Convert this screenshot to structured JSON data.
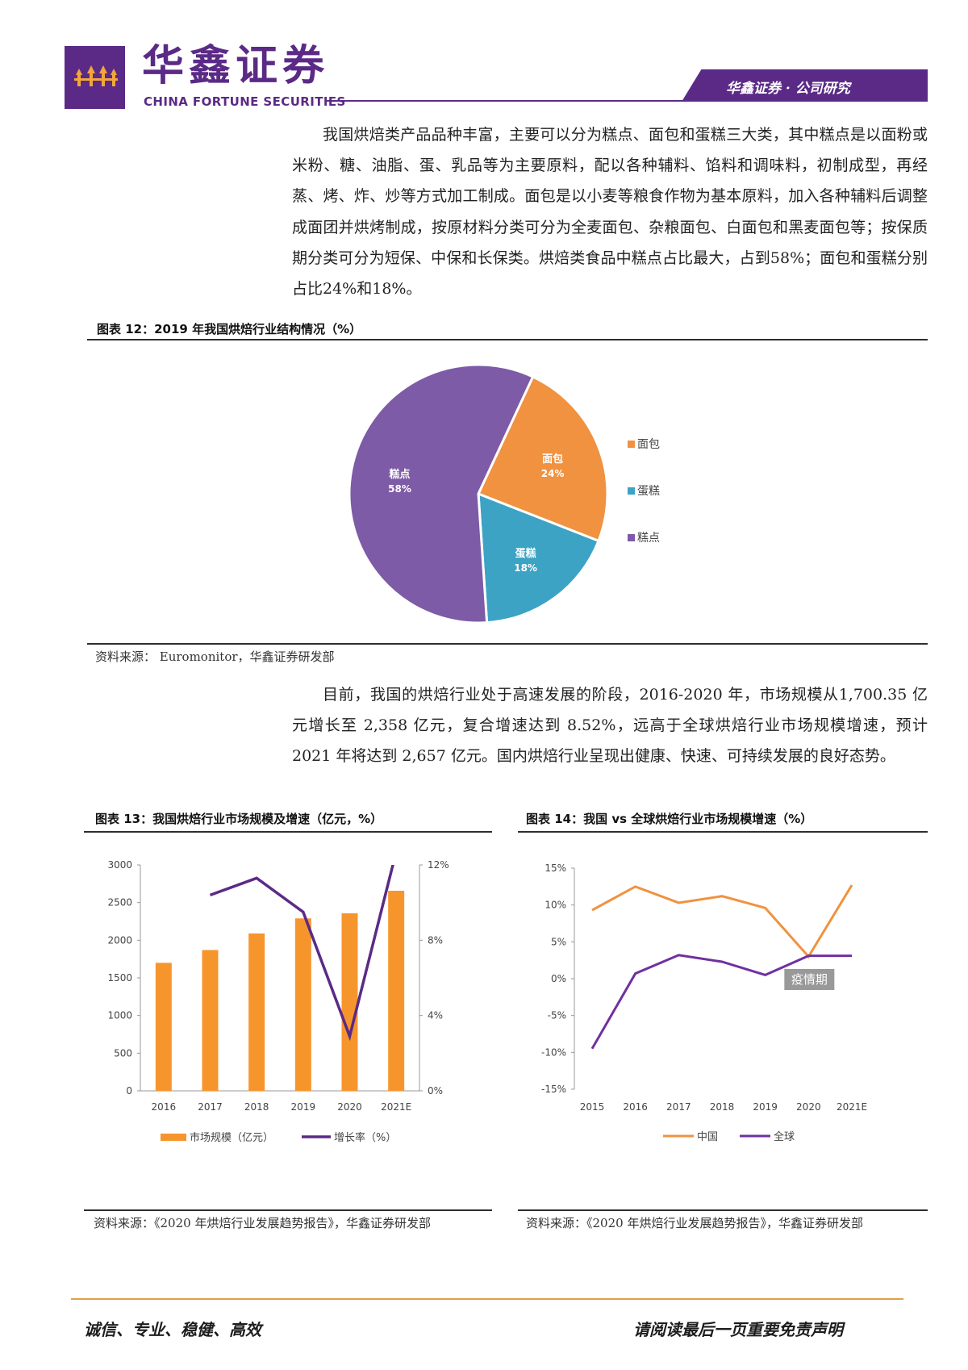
{
  "header": {
    "logo_cn": "华鑫证券",
    "logo_en": "CHINA FORTUNE SECURITIES",
    "tag": "华鑫证券 · 公司研究",
    "logo_icon": "flame-figures-icon",
    "brand_color": "#5b2a86"
  },
  "para1": "我国烘焙类产品品种丰富，主要可以分为糕点、面包和蛋糕三大类，其中糕点是以面粉或米粉、糖、油脂、蛋、乳品等为主要原料，配以各种辅料、馅料和调味料，初制成型，再经蒸、烤、炸、炒等方式加工制成。面包是以小麦等粮食作物为基本原料，加入各种辅料后调整成面团并烘烤制成，按原材料分类可分为全麦面包、杂粮面包、白面包和黑麦面包等；按保质期分类可分为短保、中保和长保类。烘焙类食品中糕点占比最大，占到58%；面包和蛋糕分别占比24%和18%。",
  "fig12": {
    "title": "图表 12：2019 年我国烘焙行业结构情况（%）",
    "source": "资料来源： Euromonitor，华鑫证券研发部"
  },
  "para2": "目前，我国的烘焙行业处于高速发展的阶段，2016-2020 年，市场规模从1,700.35 亿元增长至 2,358 亿元，复合增速达到 8.52%，远高于全球烘焙行业市场规模增速，预计 2021 年将达到 2,657 亿元。国内烘焙行业呈现出健康、快速、可持续发展的良好态势。",
  "fig13": {
    "title": "图表 13：我国烘焙行业市场规模及增速（亿元，%）",
    "source": "资料来源：《2020 年烘焙行业发展趋势报告》，华鑫证券研发部"
  },
  "fig14": {
    "title": "图表 14：我国 vs 全球烘焙行业市场规模增速（%）",
    "source": "资料来源：《2020 年烘焙行业发展趋势报告》，华鑫证券研发部"
  },
  "footer": {
    "left": "诚信、专业、稳健、高效",
    "right": "请阅读最后一页重要免责声明"
  },
  "chart_data": [
    {
      "type": "pie",
      "slices": [
        {
          "label": "面包",
          "value": 24,
          "value_label": "24%",
          "color": "#f0923f"
        },
        {
          "label": "蛋糕",
          "value": 18,
          "value_label": "18%",
          "color": "#3ca3c4"
        },
        {
          "label": "糕点",
          "value": 58,
          "value_label": "58%",
          "color": "#7d5ba6"
        }
      ],
      "legend": [
        "面包",
        "蛋糕",
        "糕点"
      ],
      "legend_position": "right"
    },
    {
      "type": "bar",
      "categories": [
        "2016",
        "2017",
        "2018",
        "2019",
        "2020",
        "2021E"
      ],
      "series": [
        {
          "name": "市场规模（亿元）",
          "type": "bar",
          "axis": "left",
          "color": "#f7952d",
          "values": [
            1700,
            1870,
            2090,
            2290,
            2358,
            2657
          ]
        },
        {
          "name": "增长率（%）",
          "type": "line",
          "axis": "right",
          "color": "#5b2a86",
          "values": [
            null,
            10.4,
            11.3,
            9.5,
            2.9,
            12.7
          ]
        }
      ],
      "left_axis": {
        "ylim": [
          0,
          3000
        ],
        "ticks": [
          "0",
          "500",
          "1000",
          "1500",
          "2000",
          "2500",
          "3000"
        ]
      },
      "right_axis": {
        "ylim": [
          0,
          12
        ],
        "ticks": [
          "0%",
          "4%",
          "8%",
          "12%"
        ]
      },
      "legend_position": "bottom"
    },
    {
      "type": "line",
      "x": [
        "2015",
        "2016",
        "2017",
        "2018",
        "2019",
        "2020",
        "2021E"
      ],
      "series": [
        {
          "name": "中国",
          "color": "#f0923f",
          "values": [
            9.3,
            12.5,
            10.3,
            11.2,
            9.6,
            3.0,
            12.7
          ]
        },
        {
          "name": "全球",
          "color": "#7030a0",
          "values": [
            -9.5,
            0.7,
            3.2,
            2.3,
            0.5,
            3.1,
            3.1
          ]
        }
      ],
      "ylim": [
        -15,
        15
      ],
      "ticks": [
        "-15%",
        "-10%",
        "-5%",
        "0%",
        "5%",
        "10%",
        "15%"
      ],
      "annotation": "疫情期",
      "legend_position": "bottom"
    }
  ]
}
